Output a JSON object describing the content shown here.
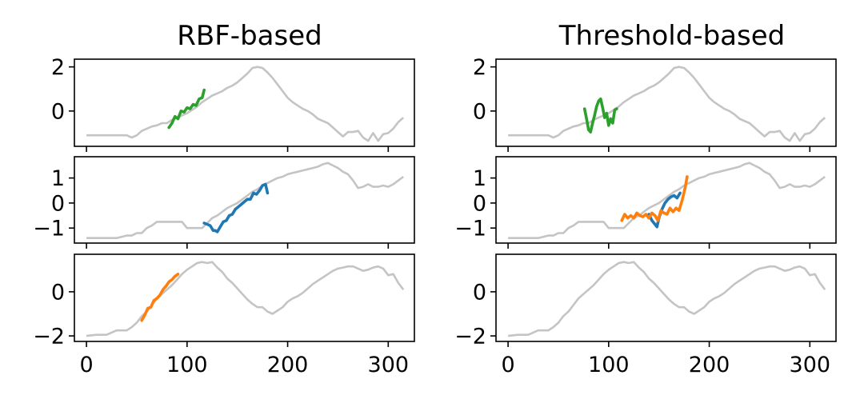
{
  "chart_data": {
    "type": "line",
    "titles": [
      "RBF-based",
      "Threshold-based"
    ],
    "xlabel": "",
    "ylabel": "",
    "grid": false,
    "legend": "none",
    "xlim": [
      -12,
      326
    ],
    "xticks": [
      0,
      100,
      200,
      300
    ],
    "colors": {
      "background_series": "#c4c4c4",
      "green": "#2ca02c",
      "blue": "#1f77b4",
      "orange": "#ff7f0e"
    },
    "background_series": [
      {
        "x": [
          0,
          10,
          20,
          30,
          40,
          45,
          50,
          55,
          60,
          65,
          70,
          75,
          80,
          85,
          90,
          95,
          100,
          105,
          110,
          115,
          120,
          125,
          130,
          135,
          140,
          145,
          150,
          155,
          160,
          165,
          170,
          175,
          180,
          185,
          190,
          195,
          200,
          205,
          210,
          215,
          220,
          225,
          230,
          235,
          240,
          245,
          250,
          255,
          260,
          265,
          270,
          275,
          280,
          285,
          290,
          295,
          300,
          305,
          310,
          315
        ],
        "y": [
          -1.1,
          -1.1,
          -1.1,
          -1.1,
          -1.1,
          -1.2,
          -1.1,
          -0.9,
          -0.8,
          -0.7,
          -0.65,
          -0.55,
          -0.55,
          -0.4,
          -0.3,
          -0.2,
          -0.1,
          0.05,
          0.2,
          0.4,
          0.55,
          0.7,
          0.8,
          0.9,
          1.05,
          1.15,
          1.3,
          1.5,
          1.7,
          1.95,
          2.0,
          1.95,
          1.75,
          1.5,
          1.2,
          0.9,
          0.6,
          0.4,
          0.25,
          0.1,
          0.0,
          -0.15,
          -0.35,
          -0.45,
          -0.55,
          -0.75,
          -0.95,
          -1.15,
          -0.95,
          -0.95,
          -0.9,
          -1.2,
          -1.35,
          -1.0,
          -1.35,
          -1.05,
          -1.0,
          -0.8,
          -0.5,
          -0.3
        ]
      },
      {
        "x": [
          0,
          10,
          20,
          30,
          40,
          45,
          50,
          55,
          60,
          65,
          70,
          75,
          80,
          85,
          90,
          95,
          100,
          105,
          110,
          115,
          120,
          125,
          130,
          135,
          140,
          145,
          150,
          155,
          160,
          165,
          170,
          175,
          180,
          185,
          190,
          195,
          200,
          205,
          210,
          215,
          220,
          225,
          230,
          235,
          240,
          245,
          250,
          255,
          260,
          265,
          270,
          275,
          280,
          285,
          290,
          295,
          300,
          305,
          310,
          315
        ],
        "y": [
          -1.4,
          -1.4,
          -1.4,
          -1.4,
          -1.3,
          -1.3,
          -1.2,
          -1.2,
          -1.0,
          -0.9,
          -0.75,
          -0.75,
          -0.75,
          -0.75,
          -0.75,
          -0.75,
          -1.0,
          -1.0,
          -1.0,
          -1.0,
          -0.8,
          -0.6,
          -0.5,
          -0.35,
          -0.2,
          -0.1,
          0.0,
          0.15,
          0.3,
          0.45,
          0.55,
          0.7,
          0.8,
          0.9,
          1.0,
          1.05,
          1.15,
          1.2,
          1.25,
          1.3,
          1.35,
          1.4,
          1.45,
          1.55,
          1.6,
          1.5,
          1.4,
          1.25,
          1.15,
          0.9,
          0.6,
          0.65,
          0.75,
          0.65,
          0.65,
          0.7,
          0.65,
          0.75,
          0.9,
          1.05
        ]
      },
      {
        "x": [
          0,
          10,
          20,
          30,
          40,
          45,
          50,
          55,
          60,
          65,
          70,
          75,
          80,
          85,
          90,
          95,
          100,
          105,
          110,
          115,
          120,
          125,
          130,
          135,
          140,
          145,
          150,
          155,
          160,
          165,
          170,
          175,
          180,
          185,
          190,
          195,
          200,
          205,
          210,
          215,
          220,
          225,
          230,
          235,
          240,
          245,
          250,
          255,
          260,
          265,
          270,
          275,
          280,
          285,
          290,
          295,
          300,
          305,
          310,
          315
        ],
        "y": [
          -2.0,
          -1.95,
          -1.95,
          -1.75,
          -1.75,
          -1.6,
          -1.4,
          -1.1,
          -0.9,
          -0.6,
          -0.3,
          -0.1,
          0.1,
          0.3,
          0.55,
          0.8,
          1.0,
          1.15,
          1.3,
          1.35,
          1.3,
          1.35,
          1.1,
          0.9,
          0.6,
          0.4,
          0.15,
          -0.1,
          -0.35,
          -0.55,
          -0.7,
          -0.7,
          -0.9,
          -1.0,
          -0.85,
          -0.7,
          -0.45,
          -0.3,
          -0.2,
          -0.05,
          0.15,
          0.35,
          0.5,
          0.65,
          0.8,
          0.95,
          1.05,
          1.1,
          1.15,
          1.15,
          1.05,
          0.95,
          1.0,
          1.1,
          1.15,
          1.05,
          0.75,
          0.8,
          0.4,
          0.1
        ]
      }
    ],
    "panels": [
      {
        "row": 0,
        "col": 0,
        "ylim": [
          -1.6,
          2.35
        ],
        "yticks": [
          0,
          2
        ],
        "ytick_labels": [
          "0",
          "2"
        ],
        "series": [
          {
            "color": "green",
            "x": [
              82,
              85,
              88,
              91,
              94,
              97,
              100,
              103,
              106,
              109,
              112,
              115,
              117
            ],
            "y": [
              -0.75,
              -0.55,
              -0.25,
              -0.35,
              0.0,
              -0.05,
              0.15,
              0.1,
              0.3,
              0.25,
              0.55,
              0.6,
              0.95
            ]
          }
        ]
      },
      {
        "row": 1,
        "col": 0,
        "ylim": [
          -1.6,
          1.85
        ],
        "yticks": [
          -1,
          0,
          1
        ],
        "ytick_labels": [
          "−1",
          "0",
          "1"
        ],
        "series": [
          {
            "color": "blue",
            "x": [
              117,
              120,
              123,
              126,
              128,
              130,
              133,
              136,
              139,
              142,
              145,
              148,
              151,
              154,
              157,
              160,
              163,
              166,
              169,
              172,
              175,
              178,
              180
            ],
            "y": [
              -0.8,
              -0.85,
              -0.9,
              -1.1,
              -1.1,
              -1.15,
              -0.95,
              -0.75,
              -0.7,
              -0.5,
              -0.45,
              -0.25,
              -0.15,
              -0.05,
              0.05,
              0.15,
              0.15,
              0.4,
              0.35,
              0.5,
              0.7,
              0.75,
              0.4
            ]
          }
        ]
      },
      {
        "row": 2,
        "col": 0,
        "ylim": [
          -2.25,
          1.7
        ],
        "yticks": [
          -2,
          0
        ],
        "ytick_labels": [
          "−2",
          "0"
        ],
        "series": [
          {
            "color": "orange",
            "x": [
              55,
              58,
              61,
              64,
              67,
              70,
              73,
              76,
              79,
              82,
              85,
              88,
              91
            ],
            "y": [
              -1.3,
              -1.05,
              -0.75,
              -0.7,
              -0.4,
              -0.3,
              -0.15,
              0.1,
              0.25,
              0.45,
              0.55,
              0.7,
              0.8
            ]
          }
        ]
      },
      {
        "row": 0,
        "col": 1,
        "ylim": [
          -1.6,
          2.35
        ],
        "yticks": [
          0,
          2
        ],
        "ytick_labels": [
          "0",
          "2"
        ],
        "series": [
          {
            "color": "green",
            "x": [
              76,
              78,
              80,
              82,
              84,
              86,
              88,
              90,
              92,
              94,
              96,
              98,
              100,
              102,
              104,
              106,
              108
            ],
            "y": [
              0.1,
              -0.35,
              -0.85,
              -0.95,
              -0.55,
              -0.2,
              0.2,
              0.45,
              0.55,
              0.15,
              -0.3,
              -0.1,
              -0.65,
              -0.35,
              -0.55,
              0.05,
              0.1
            ]
          }
        ]
      },
      {
        "row": 1,
        "col": 1,
        "ylim": [
          -1.6,
          1.85
        ],
        "yticks": [
          -1,
          0,
          1
        ],
        "ytick_labels": [
          "−1",
          "0",
          "1"
        ],
        "series": [
          {
            "color": "blue",
            "x": [
              140,
              143,
              146,
              148,
              150,
              153,
              156,
              159,
              162,
              165,
              168,
              171
            ],
            "y": [
              -0.45,
              -0.7,
              -0.85,
              -0.95,
              -0.6,
              -0.25,
              0.0,
              0.15,
              0.25,
              0.3,
              0.2,
              0.4
            ]
          },
          {
            "color": "orange",
            "x": [
              113,
              116,
              119,
              122,
              125,
              128,
              131,
              134,
              137,
              140,
              143,
              146,
              149,
              152,
              155,
              158,
              161,
              164,
              167,
              170,
              173,
              176,
              178
            ],
            "y": [
              -0.7,
              -0.45,
              -0.6,
              -0.5,
              -0.6,
              -0.4,
              -0.5,
              -0.55,
              -0.45,
              -0.6,
              -0.4,
              -0.5,
              -0.7,
              -0.3,
              -0.4,
              -0.45,
              -0.2,
              -0.35,
              -0.2,
              -0.3,
              0.1,
              0.6,
              1.05
            ]
          }
        ]
      },
      {
        "row": 2,
        "col": 1,
        "ylim": [
          -2.25,
          1.7
        ],
        "yticks": [
          -2,
          0
        ],
        "ytick_labels": [
          "−2",
          "0"
        ],
        "series": []
      }
    ]
  }
}
